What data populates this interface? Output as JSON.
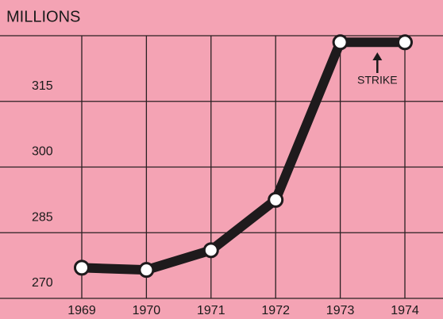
{
  "chart_data": {
    "type": "line",
    "title": "MILLIONS",
    "categories": [
      "1969",
      "1970",
      "1971",
      "1972",
      "1973",
      "1974"
    ],
    "series": [
      {
        "name": "MILLIONS",
        "color": "#1e1a1c",
        "values": [
          277,
          276.5,
          281,
          292.5,
          328.5,
          328.5
        ]
      }
    ],
    "ylim": [
      270,
      330
    ],
    "yticks": [
      270,
      285,
      300,
      315
    ],
    "grid": true,
    "annotations": [
      {
        "text": "STRIKE",
        "category": "1973"
      }
    ]
  }
}
